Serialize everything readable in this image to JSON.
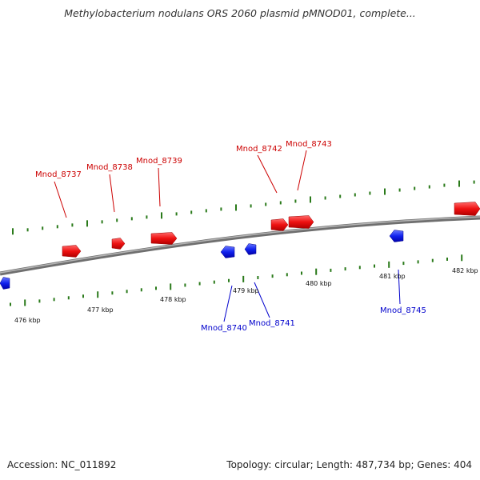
{
  "title": "Methylobacterium nodulans ORS 2060 plasmid pMNOD01, complete...",
  "footer": {
    "accession": "Accession: NC_011892",
    "summary": "Topology: circular; Length: 487,734 bp; Genes: 404"
  },
  "colors": {
    "forward_gene": "#ee1111",
    "reverse_gene": "#1122ee",
    "backbone": "#8a8a8a",
    "tick": "#2a7a1a"
  },
  "kbp_labels": [
    "476 kbp",
    "477 kbp",
    "478 kbp",
    "479 kbp",
    "480 kbp",
    "481 kbp",
    "482 kbp"
  ],
  "forward_gene_labels": [
    "Mnod_8737",
    "Mnod_8738",
    "Mnod_8739",
    "Mnod_8742",
    "Mnod_8743"
  ],
  "reverse_gene_labels": [
    "Mnod_8740",
    "Mnod_8741",
    "Mnod_8745"
  ]
}
